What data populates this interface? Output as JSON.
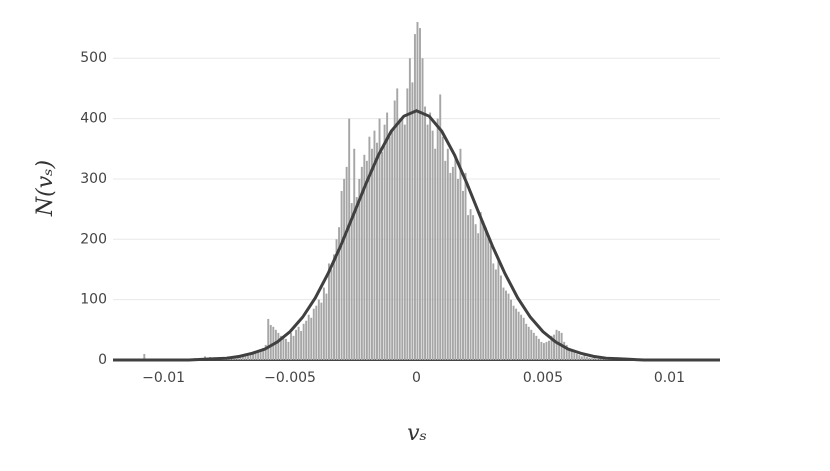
{
  "chart_data": {
    "type": "histogram",
    "x_label": "vₛ",
    "y_label": "N(vₛ)",
    "bins": [
      -0.011,
      -0.0109,
      -0.0108,
      -0.0107,
      -0.0106,
      -0.0105,
      -0.0104,
      -0.0103,
      -0.0102,
      -0.0101,
      -0.01,
      -0.0099,
      -0.0098,
      -0.0097,
      -0.0096,
      -0.0095,
      -0.0094,
      -0.0093,
      -0.0092,
      -0.0091,
      -0.009,
      -0.0089,
      -0.0088,
      -0.0087,
      -0.0086,
      -0.0085,
      -0.0084,
      -0.0083,
      -0.0082,
      -0.0081,
      -0.008,
      -0.0079,
      -0.0078,
      -0.0077,
      -0.0076,
      -0.0075,
      -0.0074,
      -0.0073,
      -0.0072,
      -0.0071,
      -0.007,
      -0.0069,
      -0.0068,
      -0.0067,
      -0.0066,
      -0.0065,
      -0.0064,
      -0.0063,
      -0.0062,
      -0.0061,
      -0.006,
      -0.0059,
      -0.0058,
      -0.0057,
      -0.0056,
      -0.0055,
      -0.0054,
      -0.0053,
      -0.0052,
      -0.0051,
      -0.005,
      -0.0049,
      -0.0048,
      -0.0047,
      -0.0046,
      -0.0045,
      -0.0044,
      -0.0043,
      -0.0042,
      -0.0041,
      -0.004,
      -0.0039,
      -0.0038,
      -0.0037,
      -0.0036,
      -0.0035,
      -0.0034,
      -0.0033,
      -0.0032,
      -0.0031,
      -0.003,
      -0.0029,
      -0.0028,
      -0.0027,
      -0.0026,
      -0.0025,
      -0.0024,
      -0.0023,
      -0.0022,
      -0.0021,
      -0.002,
      -0.0019,
      -0.0018,
      -0.0017,
      -0.0016,
      -0.0015,
      -0.0014,
      -0.0013,
      -0.0012,
      -0.0011,
      -0.001,
      -0.0009,
      -0.0008,
      -0.0007,
      -0.0006,
      -0.0005,
      -0.0004,
      -0.0003,
      -0.0002,
      -0.0001,
      0,
      0.0001,
      0.0002,
      0.0003,
      0.0004,
      0.0005,
      0.0006,
      0.0007,
      0.0008,
      0.0009,
      0.001,
      0.0011,
      0.0012,
      0.0013,
      0.0014,
      0.0015,
      0.0016,
      0.0017,
      0.0018,
      0.0019,
      0.002,
      0.0021,
      0.0022,
      0.0023,
      0.0024,
      0.0025,
      0.0026,
      0.0027,
      0.0028,
      0.0029,
      0.003,
      0.0031,
      0.0032,
      0.0033,
      0.0034,
      0.0035,
      0.0036,
      0.0037,
      0.0038,
      0.0039,
      0.004,
      0.0041,
      0.0042,
      0.0043,
      0.0044,
      0.0045,
      0.0046,
      0.0047,
      0.0048,
      0.0049,
      0.005,
      0.0051,
      0.0052,
      0.0053,
      0.0054,
      0.0055,
      0.0056,
      0.0057,
      0.0058,
      0.0059,
      0.006,
      0.0061,
      0.0062,
      0.0063,
      0.0064,
      0.0065,
      0.0066,
      0.0067,
      0.0068,
      0.0069,
      0.007,
      0.0071,
      0.0072,
      0.0073,
      0.0074,
      0.0075,
      0.0076,
      0.0077,
      0.0078,
      0.0079,
      0.008,
      0.0081,
      0.0082,
      0.0083,
      0.0084,
      0.0085,
      0.0086
    ],
    "counts": [
      1,
      2,
      10,
      1,
      0,
      1,
      2,
      0,
      1,
      1,
      0,
      2,
      1,
      1,
      0,
      1,
      2,
      1,
      0,
      1,
      2,
      1,
      3,
      1,
      0,
      2,
      6,
      4,
      5,
      3,
      4,
      3,
      5,
      2,
      3,
      6,
      4,
      3,
      5,
      4,
      6,
      5,
      8,
      7,
      9,
      10,
      12,
      15,
      18,
      20,
      25,
      68,
      58,
      55,
      50,
      45,
      40,
      38,
      35,
      30,
      45,
      40,
      50,
      55,
      48,
      60,
      65,
      75,
      70,
      85,
      90,
      100,
      95,
      120,
      110,
      160,
      150,
      175,
      200,
      220,
      280,
      300,
      320,
      400,
      260,
      350,
      270,
      300,
      320,
      340,
      330,
      370,
      350,
      380,
      360,
      400,
      345,
      390,
      410,
      370,
      380,
      430,
      450,
      400,
      400,
      390,
      450,
      500,
      460,
      540,
      560,
      550,
      500,
      420,
      390,
      410,
      380,
      350,
      400,
      440,
      370,
      330,
      350,
      310,
      320,
      340,
      300,
      350,
      280,
      310,
      240,
      250,
      240,
      225,
      210,
      245,
      230,
      220,
      205,
      190,
      160,
      150,
      165,
      140,
      120,
      115,
      110,
      100,
      90,
      85,
      80,
      75,
      70,
      60,
      55,
      50,
      45,
      40,
      35,
      30,
      28,
      30,
      32,
      40,
      42,
      50,
      48,
      45,
      30,
      25,
      20,
      15,
      12,
      10,
      8,
      6,
      8,
      5,
      4,
      3,
      4,
      2,
      3,
      5,
      2,
      1,
      3,
      2,
      1,
      2,
      3,
      1,
      4,
      2,
      1,
      1
    ],
    "color": "#a6a6a6",
    "fit": {
      "type": "line",
      "color": "#404040",
      "x": [
        -0.012,
        -0.0115,
        -0.011,
        -0.0105,
        -0.01,
        -0.0095,
        -0.009,
        -0.0085,
        -0.008,
        -0.0075,
        -0.007,
        -0.0065,
        -0.006,
        -0.0055,
        -0.005,
        -0.0045,
        -0.004,
        -0.0035,
        -0.003,
        -0.0025,
        -0.002,
        -0.0015,
        -0.001,
        -0.0005,
        0,
        0.0005,
        0.001,
        0.0015,
        0.002,
        0.0025,
        0.003,
        0.0035,
        0.004,
        0.0045,
        0.005,
        0.0055,
        0.006,
        0.0065,
        0.007,
        0.0075,
        0.008,
        0.0085,
        0.009,
        0.0095,
        0.01,
        0.0105,
        0.011,
        0.0115,
        0.012
      ],
      "values": [
        0,
        0,
        0,
        0,
        0,
        0,
        0,
        1,
        2,
        3,
        6,
        11,
        18,
        30,
        47,
        71,
        103,
        143,
        189,
        240,
        292,
        340,
        379,
        404,
        413,
        404,
        379,
        340,
        292,
        240,
        189,
        143,
        103,
        71,
        47,
        30,
        18,
        11,
        6,
        3,
        2,
        1,
        0,
        0,
        0,
        0,
        0,
        0,
        0
      ]
    },
    "xlim": [
      -0.012,
      0.012
    ],
    "ylim": [
      0,
      570
    ],
    "xticks": [
      {
        "value": -0.01,
        "label": "−0.01"
      },
      {
        "value": -0.005,
        "label": "−0.005"
      },
      0,
      0.005,
      0.01
    ],
    "yticks": [
      0,
      100,
      200,
      300,
      400,
      500
    ],
    "grid": true
  }
}
